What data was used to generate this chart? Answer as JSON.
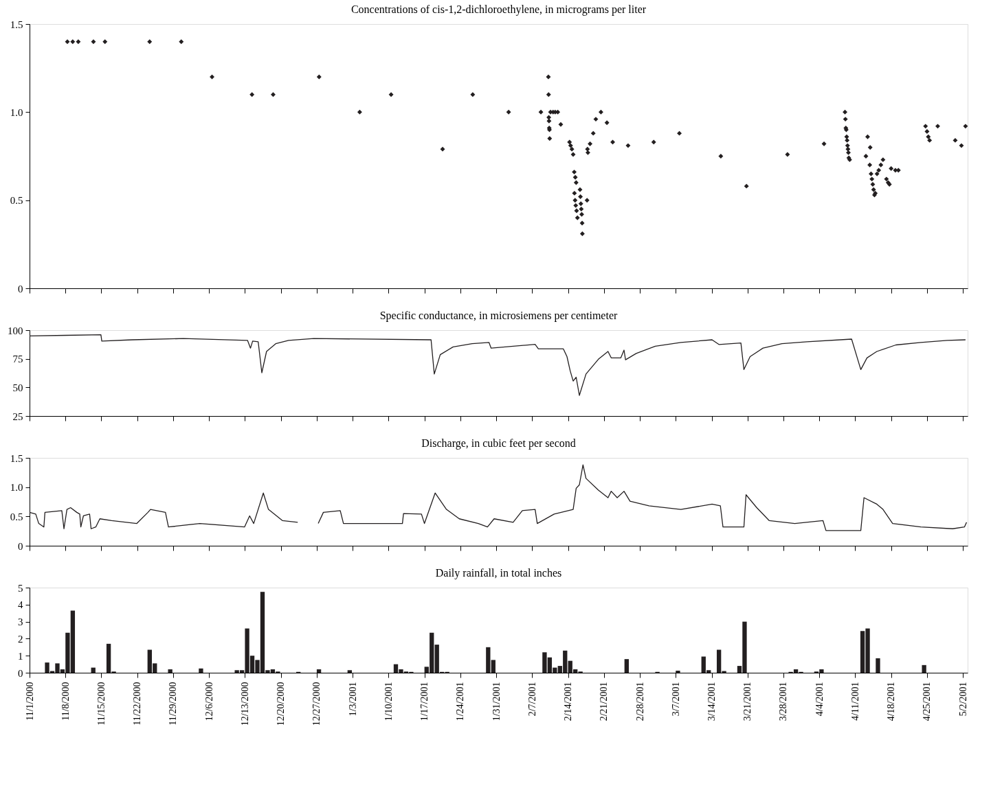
{
  "chart_data": [
    {
      "type": "scatter",
      "title": "Concentrations of cis-1,2-dichloroethylene, in micrograms per liter",
      "marker": "diamond",
      "color": "#231f20",
      "grid": false,
      "tick_labels": "y",
      "xlim": [
        "2000-11-01",
        "2001-05-02T22:00"
      ],
      "ylim": [
        0,
        1.5
      ],
      "yticks": [
        0,
        0.5,
        {
          "value": 1,
          "label": "1.0"
        },
        1.5
      ],
      "xticks": [
        {
          "value": "2000-11-01",
          "label": null
        },
        {
          "value": "2000-11-08",
          "label": null
        },
        {
          "value": "2000-11-15",
          "label": null
        },
        {
          "value": "2000-11-22",
          "label": null
        },
        {
          "value": "2000-11-29",
          "label": null
        },
        {
          "value": "2000-12-06",
          "label": null
        },
        {
          "value": "2000-12-13",
          "label": null
        },
        {
          "value": "2000-12-20",
          "label": null
        },
        {
          "value": "2000-12-27",
          "label": null
        },
        {
          "value": "2001-01-03",
          "label": null
        },
        {
          "value": "2001-01-10",
          "label": null
        },
        {
          "value": "2001-01-17",
          "label": null
        },
        {
          "value": "2001-01-24",
          "label": null
        },
        {
          "value": "2001-01-31",
          "label": null
        },
        {
          "value": "2001-02-07",
          "label": null
        },
        {
          "value": "2001-02-14",
          "label": null
        },
        {
          "value": "2001-02-21",
          "label": null
        },
        {
          "value": "2001-02-28",
          "label": null
        },
        {
          "value": "2001-03-07",
          "label": null
        },
        {
          "value": "2001-03-14",
          "label": null
        },
        {
          "value": "2001-03-21",
          "label": null
        },
        {
          "value": "2001-03-28",
          "label": null
        },
        {
          "value": "2001-04-04",
          "label": null
        },
        {
          "value": "2001-04-11",
          "label": null
        },
        {
          "value": "2001-04-18",
          "label": null
        },
        {
          "value": "2001-04-25",
          "label": null
        },
        {
          "value": "2001-05-02",
          "label": null
        }
      ],
      "x": [
        "2000-11-08T09:00",
        "2000-11-09T10:00",
        "2000-11-10T12:00",
        "2000-11-13T11:00",
        "2000-11-15T17:00",
        "2000-11-24T10:00",
        "2000-11-30T14:00",
        "2000-12-06T14:00",
        "2000-12-14T09:00",
        "2000-12-18T12:00",
        "2000-12-27T11:00",
        "2001-01-04T09:00",
        "2001-01-10T12:00",
        "2001-01-20T13:00",
        "2001-01-26T10:00",
        "2001-02-02T10:00",
        "2001-02-08T17:00",
        "2001-02-10T04:00",
        "2001-02-10T05:00",
        "2001-02-10T06:00",
        "2001-02-10T07:00",
        "2001-02-10T08:00",
        "2001-02-10T09:00",
        "2001-02-10T10:00",
        "2001-02-10T14:00",
        "2001-02-11T02:00",
        "2001-02-11T12:00",
        "2001-02-12T00:00",
        "2001-02-12T14:00",
        "2001-02-14T07:00",
        "2001-02-14T12:00",
        "2001-02-14T18:00",
        "2001-02-15T00:00",
        "2001-02-15T05:00",
        "2001-02-15T10:00",
        "2001-02-15T14:00",
        "2001-02-15T06:00",
        "2001-02-15T09:00",
        "2001-02-15T12:00",
        "2001-02-15T16:00",
        "2001-02-15T20:00",
        "2001-02-16T08:00",
        "2001-02-16T10:00",
        "2001-02-16T12:00",
        "2001-02-16T14:00",
        "2001-02-16T16:00",
        "2001-02-16T18:00",
        "2001-02-16T19:00",
        "2001-02-17T17:00",
        "2001-02-17T19:00",
        "2001-02-17T21:00",
        "2001-02-18T07:00",
        "2001-02-18T22:00",
        "2001-02-19T10:00",
        "2001-02-20T10:00",
        "2001-02-21T14:00",
        "2001-02-22T17:00",
        "2001-02-25T17:00",
        "2001-03-02T17:00",
        "2001-03-07T17:00",
        "2001-03-15T19:00",
        "2001-03-20T19:00",
        "2001-03-28T19:00",
        "2001-04-04T22:00",
        "2001-04-09T00:00",
        "2001-04-09T02:00",
        "2001-04-09T04:00",
        "2001-04-09T06:00",
        "2001-04-09T08:00",
        "2001-04-09T10:00",
        "2001-04-09T12:00",
        "2001-04-09T14:00",
        "2001-04-09T16:00",
        "2001-04-09T18:00",
        "2001-04-09T22:00",
        "2001-04-13T02:00",
        "2001-04-13T10:00",
        "2001-04-13T20:00",
        "2001-04-13T22:00",
        "2001-04-14T02:00",
        "2001-04-14T06:00",
        "2001-04-14T10:00",
        "2001-04-14T14:00",
        "2001-04-14T18:00",
        "2001-04-14T22:00",
        "2001-04-15T06:00",
        "2001-04-15T14:00",
        "2001-04-16T00:00",
        "2001-04-16T10:00",
        "2001-04-17T02:00",
        "2001-04-17T10:00",
        "2001-04-17T16:00",
        "2001-04-18T00:00",
        "2001-04-18T20:00",
        "2001-04-19T10:00",
        "2001-04-24T17:00",
        "2001-04-25T00:00",
        "2001-04-25T06:00",
        "2001-04-25T12:00",
        "2001-04-27T02:00",
        "2001-04-30T12:00",
        "2001-05-01T17:00",
        "2001-05-02T12:00"
      ],
      "values": [
        1.4,
        1.4,
        1.4,
        1.4,
        1.4,
        1.4,
        1.4,
        1.2,
        1.1,
        1.1,
        1.2,
        1.0,
        1.1,
        0.79,
        1.1,
        1.0,
        1.0,
        1.2,
        1.1,
        0.97,
        0.95,
        0.91,
        0.9,
        0.85,
        1.0,
        1.0,
        1.0,
        1.0,
        0.93,
        0.83,
        0.81,
        0.79,
        0.76,
        0.66,
        0.63,
        0.6,
        0.54,
        0.5,
        0.47,
        0.44,
        0.4,
        0.56,
        0.52,
        0.48,
        0.45,
        0.42,
        0.37,
        0.31,
        0.5,
        0.79,
        0.77,
        0.82,
        0.88,
        0.96,
        1.0,
        0.94,
        0.83,
        0.81,
        0.83,
        0.88,
        0.75,
        0.58,
        0.76,
        0.82,
        1.0,
        0.96,
        0.91,
        0.9,
        0.86,
        0.84,
        0.81,
        0.79,
        0.77,
        0.74,
        0.73,
        0.75,
        0.86,
        0.7,
        0.8,
        0.65,
        0.62,
        0.59,
        0.56,
        0.53,
        0.54,
        0.65,
        0.67,
        0.7,
        0.73,
        0.62,
        0.6,
        0.59,
        0.68,
        0.67,
        0.67,
        0.92,
        0.89,
        0.86,
        0.84,
        0.92,
        0.84,
        0.81,
        0.92
      ]
    },
    {
      "type": "line",
      "title": "Specific conductance, in microsiemens per centimeter",
      "color": "#231f20",
      "line_style": "solid",
      "grid": false,
      "tick_labels": "y",
      "xlim": [
        "2000-11-01",
        "2001-05-02T22:00"
      ],
      "ylim": [
        25,
        100
      ],
      "yticks": [
        25,
        50,
        75,
        100
      ],
      "xticks": [
        {
          "value": "2000-11-01",
          "label": null
        },
        {
          "value": "2000-11-08",
          "label": null
        },
        {
          "value": "2000-11-15",
          "label": null
        },
        {
          "value": "2000-11-22",
          "label": null
        },
        {
          "value": "2000-11-29",
          "label": null
        },
        {
          "value": "2000-12-06",
          "label": null
        },
        {
          "value": "2000-12-13",
          "label": null
        },
        {
          "value": "2000-12-20",
          "label": null
        },
        {
          "value": "2000-12-27",
          "label": null
        },
        {
          "value": "2001-01-03",
          "label": null
        },
        {
          "value": "2001-01-10",
          "label": null
        },
        {
          "value": "2001-01-17",
          "label": null
        },
        {
          "value": "2001-01-24",
          "label": null
        },
        {
          "value": "2001-01-31",
          "label": null
        },
        {
          "value": "2001-02-07",
          "label": null
        },
        {
          "value": "2001-02-14",
          "label": null
        },
        {
          "value": "2001-02-21",
          "label": null
        },
        {
          "value": "2001-02-28",
          "label": null
        },
        {
          "value": "2001-03-07",
          "label": null
        },
        {
          "value": "2001-03-14",
          "label": null
        },
        {
          "value": "2001-03-21",
          "label": null
        },
        {
          "value": "2001-03-28",
          "label": null
        },
        {
          "value": "2001-04-04",
          "label": null
        },
        {
          "value": "2001-04-11",
          "label": null
        },
        {
          "value": "2001-04-18",
          "label": null
        },
        {
          "value": "2001-04-25",
          "label": null
        },
        {
          "value": "2001-05-02",
          "label": null
        }
      ],
      "x": [
        "2000-11-01T00:00",
        "2000-11-08T00:00",
        "2000-11-14T22:00",
        "2000-11-15T02:00",
        "2000-11-21T00:00",
        "2000-12-01T00:00",
        "2000-12-13T12:00",
        "2000-12-14T02:00",
        "2000-12-14T12:00",
        "2000-12-15T14:00",
        "2000-12-16T07:00",
        "2000-12-17T05:00",
        "2000-12-19T00:00",
        "2000-12-21T12:00",
        "2000-12-26T10:00",
        "2001-01-18T07:00",
        "2001-01-18T22:00",
        "2001-01-20T02:00",
        "2001-01-22T14:00",
        "2001-01-26T07:00",
        "2001-01-29T14:00",
        "2001-01-30T00:00",
        "2001-02-07T14:00",
        "2001-02-08T05:00",
        "2001-02-13T02:00",
        "2001-02-13T19:00",
        "2001-02-14T10:00",
        "2001-02-15T00:00",
        "2001-02-15T14:00",
        "2001-02-16T05:00",
        "2001-02-17T12:00",
        "2001-02-19T22:00",
        "2001-02-21T19:00",
        "2001-02-22T10:00",
        "2001-02-24T07:00",
        "2001-02-24T22:00",
        "2001-02-25T05:00",
        "2001-02-27T07:00",
        "2001-03-03T00:00",
        "2001-03-08T00:00",
        "2001-03-14T02:00",
        "2001-03-15T10:00",
        "2001-03-19T17:00",
        "2001-03-20T07:00",
        "2001-03-21T12:00",
        "2001-03-24T00:00",
        "2001-03-27T17:00",
        "2001-04-01T14:00",
        "2001-04-10T07:00",
        "2001-04-12T02:00",
        "2001-04-13T07:00",
        "2001-04-15T05:00",
        "2001-04-18T22:00",
        "2001-04-23T19:00",
        "2001-04-28T22:00",
        "2001-05-02T12:00"
      ],
      "values": [
        95.0,
        95.5,
        96.0,
        90.5,
        91.6,
        92.7,
        91.1,
        84.3,
        90.5,
        89.9,
        62.8,
        81.4,
        88.2,
        91.1,
        92.7,
        91.6,
        61.7,
        78.6,
        85.4,
        88.2,
        89.3,
        84.3,
        87.6,
        83.7,
        83.7,
        76.9,
        64.5,
        55.5,
        58.9,
        43.0,
        61.7,
        74.6,
        81.4,
        75.8,
        75.8,
        82.6,
        74.1,
        79.7,
        86.0,
        89.3,
        91.6,
        87.5,
        88.8,
        65.6,
        76.9,
        84.3,
        88.2,
        89.9,
        92.2,
        65.6,
        75.8,
        81.4,
        87.1,
        89.3,
        91.1,
        91.6
      ]
    },
    {
      "type": "line",
      "title": "Discharge, in cubic feet per second",
      "color": "#231f20",
      "line_style": "solid",
      "grid": false,
      "tick_labels": "y",
      "xlim": [
        "2000-11-01",
        "2001-05-02T22:00"
      ],
      "ylim": [
        0,
        1.5
      ],
      "yticks": [
        0,
        0.5,
        {
          "value": 1,
          "label": "1.0"
        },
        1.5
      ],
      "xticks": [
        {
          "value": "2000-11-01",
          "label": null
        },
        {
          "value": "2000-11-08",
          "label": null
        },
        {
          "value": "2000-11-15",
          "label": null
        },
        {
          "value": "2000-11-22",
          "label": null
        },
        {
          "value": "2000-11-29",
          "label": null
        },
        {
          "value": "2000-12-06",
          "label": null
        },
        {
          "value": "2000-12-13",
          "label": null
        },
        {
          "value": "2000-12-20",
          "label": null
        },
        {
          "value": "2000-12-27",
          "label": null
        },
        {
          "value": "2001-01-03",
          "label": null
        },
        {
          "value": "2001-01-10",
          "label": null
        },
        {
          "value": "2001-01-17",
          "label": null
        },
        {
          "value": "2001-01-24",
          "label": null
        },
        {
          "value": "2001-01-31",
          "label": null
        },
        {
          "value": "2001-02-07",
          "label": null
        },
        {
          "value": "2001-02-14",
          "label": null
        },
        {
          "value": "2001-02-21",
          "label": null
        },
        {
          "value": "2001-02-28",
          "label": null
        },
        {
          "value": "2001-03-07",
          "label": null
        },
        {
          "value": "2001-03-14",
          "label": null
        },
        {
          "value": "2001-03-21",
          "label": null
        },
        {
          "value": "2001-03-28",
          "label": null
        },
        {
          "value": "2001-04-04",
          "label": null
        },
        {
          "value": "2001-04-11",
          "label": null
        },
        {
          "value": "2001-04-18",
          "label": null
        },
        {
          "value": "2001-04-25",
          "label": null
        },
        {
          "value": "2001-05-02",
          "label": null
        }
      ],
      "x": [
        "2000-11-01T00:00",
        "2000-11-02T05:00",
        "2000-11-02T19:00",
        "2000-11-03T19:00",
        "2000-11-04T00:00",
        "2000-11-07T07:00",
        "2000-11-07T17:00",
        "2000-11-08T07:00",
        "2000-11-09T00:00",
        "2000-11-10T05:00",
        "2000-11-10T19:00",
        "2000-11-11T00:00",
        "2000-11-11T12:00",
        "2000-11-12T17:00",
        "2000-11-13T00:00",
        "2000-11-13T22:00",
        "2000-11-14T17:00",
        "2000-11-17T00:00",
        "2000-11-21T22:00",
        "2000-11-24T02:00",
        "2000-11-24T14:00",
        "2000-11-27T12:00",
        "2000-11-28T02:00",
        "2000-12-04T05:00",
        "2000-12-12T22:00",
        "2000-12-13T22:00",
        "2000-12-14T17:00",
        "2000-12-16T14:00",
        "2000-12-17T14:00",
        "2000-12-20T07:00",
        "2000-12-23T07:00",
        "2000-12-25T07:00",
        "2000-12-27T07:00",
        "2000-12-28T07:00",
        "2000-12-31T14:00",
        "2001-01-01T05:00",
        "2001-01-12T17:00",
        "2001-01-12T22:00",
        "2001-01-16T10:00",
        "2001-01-17T00:00",
        "2001-01-19T02:00",
        "2001-01-21T07:00",
        "2001-01-23T19:00",
        "2001-01-27T12:00",
        "2001-01-29T07:00",
        "2001-01-30T14:00",
        "2001-02-03T07:00",
        "2001-02-05T02:00",
        "2001-02-07T14:00",
        "2001-02-08T00:00",
        "2001-02-11T07:00",
        "2001-02-15T00:00",
        "2001-02-15T14:00",
        "2001-02-16T05:00",
        "2001-02-16T22:00",
        "2001-02-17T12:00",
        "2001-02-19T22:00",
        "2001-02-21T19:00",
        "2001-02-22T10:00",
        "2001-02-23T14:00",
        "2001-02-24T22:00",
        "2001-02-26T02:00",
        "2001-03-01T19:00",
        "2001-03-08T00:00",
        "2001-03-14T02:00",
        "2001-03-15T17:00",
        "2001-03-16T05:00",
        "2001-03-20T07:00",
        "2001-03-20T17:00",
        "2001-03-22T19:00",
        "2001-03-25T05:00",
        "2001-03-30T05:00",
        "2001-04-04T17:00",
        "2001-04-05T07:00",
        "2001-04-12T02:00",
        "2001-04-12T17:00",
        "2001-04-15T05:00",
        "2001-04-16T10:00",
        "2001-04-18T07:00",
        "2001-04-23T19:00",
        "2001-04-30T00:00",
        "2001-05-02T07:00",
        "2001-05-02T17:00"
      ],
      "values": [
        0.57,
        0.54,
        0.38,
        0.32,
        0.57,
        0.6,
        0.29,
        0.62,
        0.65,
        0.57,
        0.54,
        0.32,
        0.51,
        0.54,
        0.29,
        0.32,
        0.46,
        0.43,
        0.38,
        0.57,
        0.62,
        0.57,
        0.32,
        0.38,
        0.32,
        0.51,
        0.38,
        0.9,
        0.62,
        0.43,
        0.4,
        null,
        0.38,
        0.57,
        0.6,
        0.38,
        0.38,
        0.55,
        0.54,
        0.38,
        0.9,
        0.62,
        0.46,
        0.38,
        0.32,
        0.46,
        0.4,
        0.6,
        0.62,
        0.38,
        0.54,
        0.62,
        0.98,
        1.04,
        1.38,
        1.15,
        0.95,
        0.82,
        0.93,
        0.82,
        0.93,
        0.76,
        0.68,
        0.62,
        0.71,
        0.68,
        0.32,
        0.32,
        0.87,
        0.65,
        0.43,
        0.38,
        0.43,
        0.26,
        0.26,
        0.82,
        0.71,
        0.62,
        0.38,
        0.32,
        0.29,
        0.32,
        0.4
      ]
    },
    {
      "type": "bar",
      "title": "Daily rainfall, in total inches",
      "color": "#231f20",
      "grid": false,
      "xlim": [
        "2000-11-01",
        "2001-05-02T22:00"
      ],
      "ylim": [
        0,
        5
      ],
      "yticks": [
        0,
        1,
        2,
        3,
        4,
        5
      ],
      "xticks": [
        {
          "value": "2000-11-01",
          "label": "11/1/2000"
        },
        {
          "value": "2000-11-08",
          "label": "11/8/2000"
        },
        {
          "value": "2000-11-15",
          "label": "11/15/2000"
        },
        {
          "value": "2000-11-22",
          "label": "11/22/2000"
        },
        {
          "value": "2000-11-29",
          "label": "11/29/2000"
        },
        {
          "value": "2000-12-06",
          "label": "12/6/2000"
        },
        {
          "value": "2000-12-13",
          "label": "12/13/2000"
        },
        {
          "value": "2000-12-20",
          "label": "12/20/2000"
        },
        {
          "value": "2000-12-27",
          "label": "12/27/2000"
        },
        {
          "value": "2001-01-03",
          "label": "1/3/2001"
        },
        {
          "value": "2001-01-10",
          "label": "1/10/2001"
        },
        {
          "value": "2001-01-17",
          "label": "1/17/2001"
        },
        {
          "value": "2001-01-24",
          "label": "1/24/2001"
        },
        {
          "value": "2001-01-31",
          "label": "1/31/2001"
        },
        {
          "value": "2001-02-07",
          "label": "2/7/2001"
        },
        {
          "value": "2001-02-14",
          "label": "2/14/2001"
        },
        {
          "value": "2001-02-21",
          "label": "2/21/2001"
        },
        {
          "value": "2001-02-28",
          "label": "2/28/2001"
        },
        {
          "value": "2001-03-07",
          "label": "3/7/2001"
        },
        {
          "value": "2001-03-14",
          "label": "3/14/2001"
        },
        {
          "value": "2001-03-21",
          "label": "3/21/2001"
        },
        {
          "value": "2001-03-28",
          "label": "3/28/2001"
        },
        {
          "value": "2001-04-04",
          "label": "4/4/2001"
        },
        {
          "value": "2001-04-11",
          "label": "4/11/2001"
        },
        {
          "value": "2001-04-18",
          "label": "4/18/2001"
        },
        {
          "value": "2001-04-25",
          "label": "4/25/2001"
        },
        {
          "value": "2001-05-02",
          "label": "5/2/2001"
        }
      ],
      "x": [
        "2000-11-04",
        "2000-11-05",
        "2000-11-06",
        "2000-11-07",
        "2000-11-08",
        "2000-11-09",
        "2000-11-13",
        "2000-11-16",
        "2000-11-17",
        "2000-11-24",
        "2000-11-25",
        "2000-11-28",
        "2000-12-04",
        "2000-12-11",
        "2000-12-12",
        "2000-12-13",
        "2000-12-14",
        "2000-12-15",
        "2000-12-16",
        "2000-12-17",
        "2000-12-18",
        "2000-12-19",
        "2000-12-23",
        "2000-12-27",
        "2001-01-02",
        "2001-01-11",
        "2001-01-12",
        "2001-01-13",
        "2001-01-14",
        "2001-01-17",
        "2001-01-18",
        "2001-01-19",
        "2001-01-20",
        "2001-01-21",
        "2001-01-29",
        "2001-01-30",
        "2001-02-09",
        "2001-02-10",
        "2001-02-11",
        "2001-02-12",
        "2001-02-13",
        "2001-02-14",
        "2001-02-15",
        "2001-02-16",
        "2001-02-25",
        "2001-03-03",
        "2001-03-07",
        "2001-03-12",
        "2001-03-13",
        "2001-03-15",
        "2001-03-16",
        "2001-03-19",
        "2001-03-20",
        "2001-03-29",
        "2001-03-30",
        "2001-03-31",
        "2001-04-03",
        "2001-04-04",
        "2001-04-12",
        "2001-04-13",
        "2001-04-15",
        "2001-04-24"
      ],
      "values": [
        0.6,
        0.1,
        0.55,
        0.2,
        2.35,
        3.65,
        0.3,
        1.7,
        0.07,
        1.35,
        0.55,
        0.2,
        0.25,
        0.15,
        0.15,
        2.6,
        1.0,
        0.75,
        4.75,
        0.15,
        0.2,
        0.07,
        0.05,
        0.2,
        0.15,
        0.5,
        0.2,
        0.07,
        0.05,
        0.35,
        2.35,
        1.65,
        0.05,
        0.05,
        1.5,
        0.75,
        1.2,
        0.9,
        0.3,
        0.4,
        1.3,
        0.7,
        0.2,
        0.07,
        0.8,
        0.05,
        0.12,
        0.95,
        0.15,
        1.35,
        0.1,
        0.4,
        3.0,
        0.05,
        0.2,
        0.05,
        0.07,
        0.2,
        2.45,
        2.6,
        0.85,
        0.45
      ]
    }
  ]
}
